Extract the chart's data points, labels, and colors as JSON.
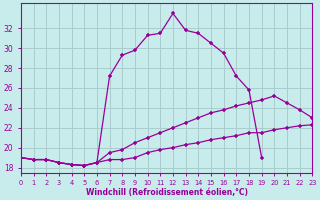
{
  "xlabel": "Windchill (Refroidissement éolien,°C)",
  "background_color": "#c8ecec",
  "line_color": "#990099",
  "grid_color": "#aacccc",
  "x_hours": [
    0,
    1,
    2,
    3,
    4,
    5,
    6,
    7,
    8,
    9,
    10,
    11,
    12,
    13,
    14,
    15,
    16,
    17,
    18,
    19,
    20,
    21,
    22,
    23
  ],
  "series_top": [
    19.0,
    18.8,
    18.8,
    18.5,
    18.3,
    18.2,
    18.5,
    27.2,
    29.3,
    29.8,
    31.3,
    31.5,
    33.5,
    31.8,
    31.5,
    30.5,
    29.5,
    27.2,
    25.8,
    19.0,
    null,
    null,
    null,
    null
  ],
  "series_mid": [
    19.0,
    18.8,
    18.8,
    18.5,
    18.3,
    18.2,
    18.5,
    19.5,
    19.8,
    20.5,
    21.0,
    21.5,
    22.0,
    22.5,
    23.0,
    23.5,
    23.8,
    24.2,
    24.5,
    24.8,
    25.2,
    24.5,
    23.8,
    23.0
  ],
  "series_bot": [
    19.0,
    18.8,
    18.8,
    18.5,
    18.3,
    18.2,
    18.5,
    18.8,
    18.8,
    19.0,
    19.5,
    19.8,
    20.0,
    20.3,
    20.5,
    20.8,
    21.0,
    21.2,
    21.5,
    21.5,
    21.8,
    22.0,
    22.2,
    22.3
  ],
  "ylim": [
    17.5,
    34.5
  ],
  "yticks": [
    18,
    20,
    22,
    24,
    26,
    28,
    30,
    32
  ],
  "xlim": [
    0,
    23
  ]
}
